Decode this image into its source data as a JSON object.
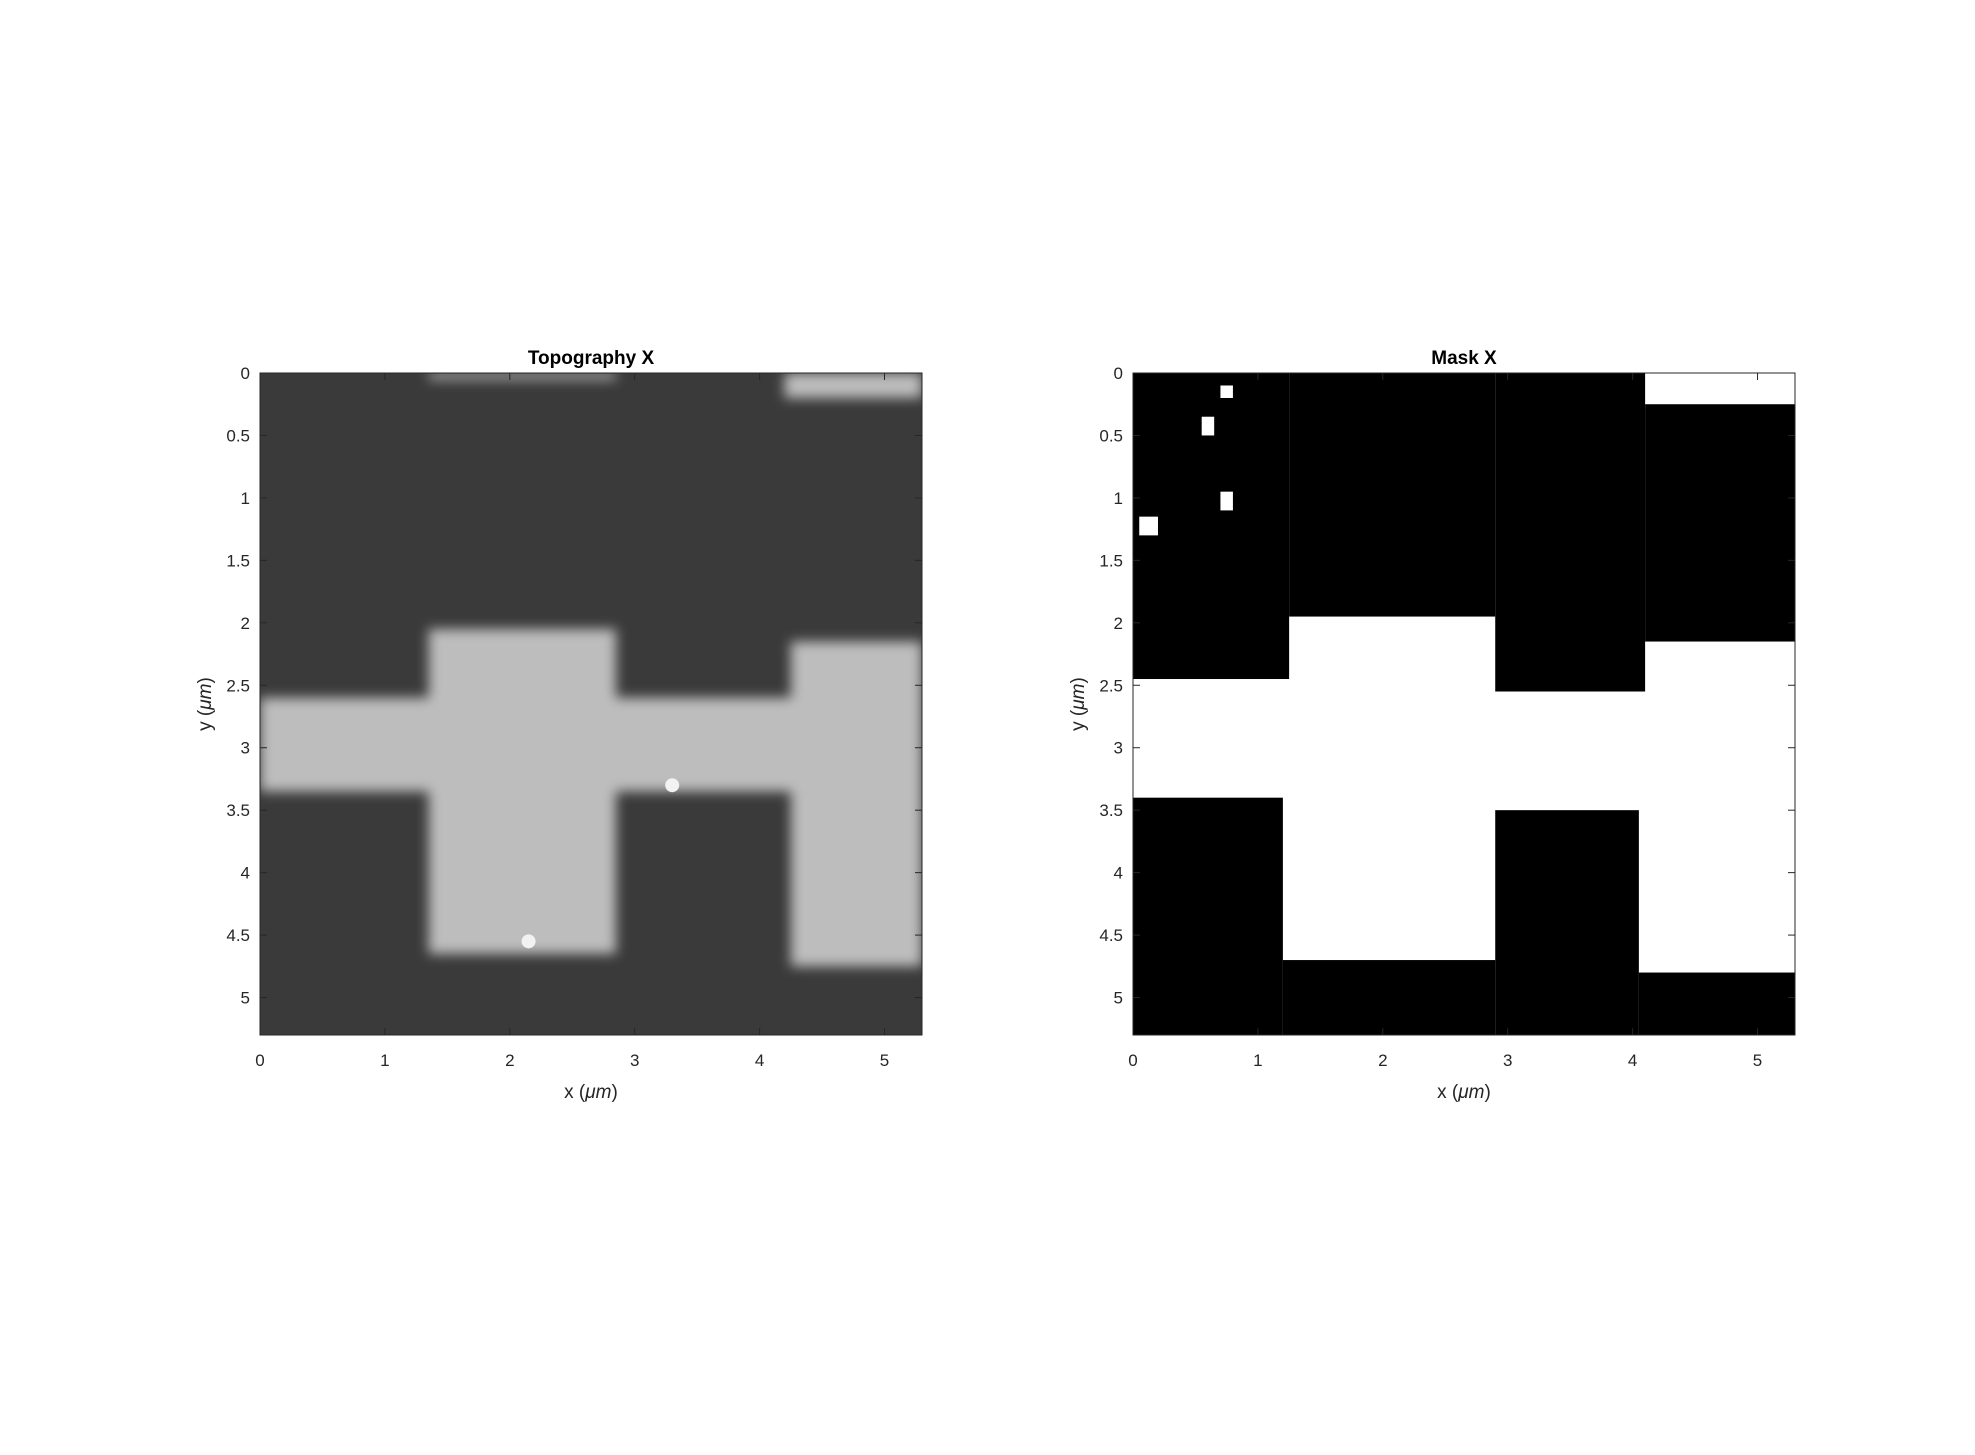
{
  "chart_data": [
    {
      "type": "heatmap",
      "name": "topography",
      "title": "Topography X",
      "xlabel_text": "x (",
      "xlabel_unit": "μm",
      "xlabel_close": ")",
      "ylabel_text": "y (",
      "ylabel_unit": "μm",
      "ylabel_close": ")",
      "xlim": [
        0,
        5.3
      ],
      "ylim": [
        0,
        5.3
      ],
      "y_direction": "down",
      "x_ticks": [
        "0",
        "1",
        "2",
        "3",
        "4",
        "5"
      ],
      "y_ticks": [
        "0",
        "0.5",
        "1",
        "1.5",
        "2",
        "2.5",
        "3",
        "3.5",
        "4",
        "4.5",
        "5"
      ],
      "colormap": "gray",
      "dark_level": "#3a3a3a",
      "bright_level": "#bdbdbd",
      "bright_regions_um": [
        {
          "x": [
            1.35,
            2.85
          ],
          "y": [
            2.05,
            4.65
          ]
        },
        {
          "x": [
            4.25,
            5.3
          ],
          "y": [
            2.15,
            4.75
          ]
        },
        {
          "x": [
            0,
            5.3
          ],
          "y": [
            2.6,
            3.35
          ]
        },
        {
          "x": [
            1.35,
            2.85
          ],
          "y": [
            0,
            0.05
          ]
        },
        {
          "x": [
            4.2,
            5.3
          ],
          "y": [
            0,
            0.2
          ]
        }
      ],
      "bright_spots_um": [
        {
          "x": 3.3,
          "y": 3.3
        },
        {
          "x": 2.15,
          "y": 4.55
        }
      ]
    },
    {
      "type": "heatmap",
      "name": "mask",
      "title": "Mask X",
      "xlabel_text": "x (",
      "xlabel_unit": "μm",
      "xlabel_close": ")",
      "ylabel_text": "y (",
      "ylabel_unit": "μm",
      "ylabel_close": ")",
      "xlim": [
        0,
        5.3
      ],
      "ylim": [
        0,
        5.3
      ],
      "y_direction": "down",
      "x_ticks": [
        "0",
        "1",
        "2",
        "3",
        "4",
        "5"
      ],
      "y_ticks": [
        "0",
        "0.5",
        "1",
        "1.5",
        "2",
        "2.5",
        "3",
        "3.5",
        "4",
        "4.5",
        "5"
      ],
      "colormap": "binary",
      "background_value": "#ffffff",
      "foreground_value": "#000000",
      "black_regions_um": [
        {
          "x": [
            0,
            1.25
          ],
          "y": [
            0,
            2.45
          ]
        },
        {
          "x": [
            1.25,
            2.9
          ],
          "y": [
            0,
            1.95
          ]
        },
        {
          "x": [
            2.9,
            4.1
          ],
          "y": [
            0,
            2.55
          ]
        },
        {
          "x": [
            4.1,
            5.3
          ],
          "y": [
            0.25,
            2.15
          ]
        },
        {
          "x": [
            0,
            1.2
          ],
          "y": [
            3.4,
            5.3
          ]
        },
        {
          "x": [
            1.2,
            2.9
          ],
          "y": [
            4.7,
            5.3
          ]
        },
        {
          "x": [
            2.9,
            4.05
          ],
          "y": [
            3.5,
            5.3
          ]
        },
        {
          "x": [
            4.05,
            5.3
          ],
          "y": [
            4.8,
            5.3
          ]
        }
      ],
      "white_holes_um": [
        {
          "x": [
            0.7,
            0.8
          ],
          "y": [
            0.1,
            0.2
          ]
        },
        {
          "x": [
            0.55,
            0.65
          ],
          "y": [
            0.35,
            0.5
          ]
        },
        {
          "x": [
            0.7,
            0.8
          ],
          "y": [
            0.95,
            1.1
          ]
        },
        {
          "x": [
            0.05,
            0.2
          ],
          "y": [
            1.15,
            1.3
          ]
        }
      ]
    }
  ]
}
